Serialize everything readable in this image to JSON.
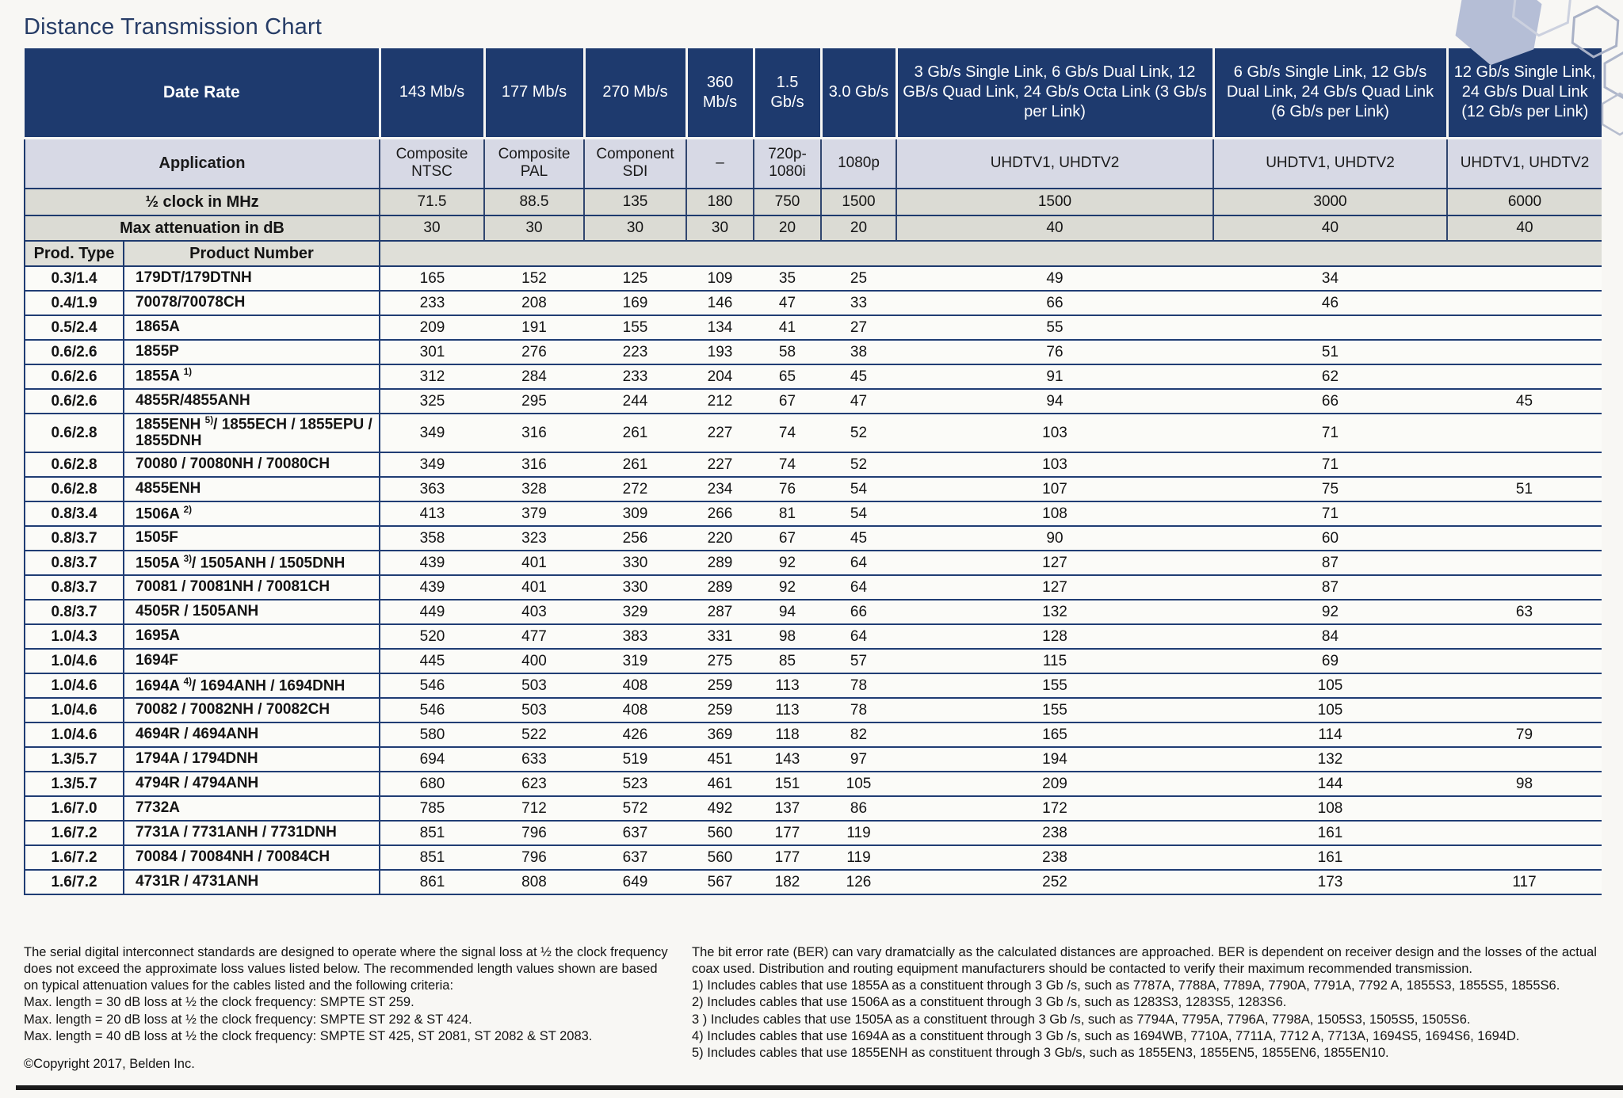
{
  "page": {
    "title": "Distance Transmission Chart"
  },
  "colors": {
    "header_navy": "#1e3a6e",
    "application_row": "#d7d9e5",
    "stat_row": "#dbdbd4",
    "row_line": "#203d74"
  },
  "table": {
    "corner_labels": {
      "data_rate": "Date Rate",
      "application": "Application",
      "half_clock": "½ clock in MHz",
      "max_attenuation": "Max attenuation in dB",
      "prod_type": "Prod. Type",
      "product_number": "Product Number"
    },
    "columns": [
      {
        "rate": "143 Mb/s",
        "application": "Composite NTSC",
        "half_clock": "71.5",
        "max_attenuation": "30"
      },
      {
        "rate": "177 Mb/s",
        "application": "Composite PAL",
        "half_clock": "88.5",
        "max_attenuation": "30"
      },
      {
        "rate": "270 Mb/s",
        "application": "Component SDI",
        "half_clock": "135",
        "max_attenuation": "30"
      },
      {
        "rate": "360 Mb/s",
        "application": "–",
        "half_clock": "180",
        "max_attenuation": "30"
      },
      {
        "rate": "1.5 Gb/s",
        "application": "720p- 1080i",
        "half_clock": "750",
        "max_attenuation": "20"
      },
      {
        "rate": "3.0 Gb/s",
        "application": "1080p",
        "half_clock": "1500",
        "max_attenuation": "20"
      },
      {
        "rate": "3 Gb/s Single Link, 6 Gb/s Dual Link, 12 GB/s Quad Link, 24 Gb/s Octa Link (3 Gb/s per Link)",
        "application": "UHDTV1, UHDTV2",
        "half_clock": "1500",
        "max_attenuation": "40"
      },
      {
        "rate": "6 Gb/s Single Link, 12 Gb/s Dual Link, 24 Gb/s Quad Link (6 Gb/s per Link)",
        "application": "UHDTV1, UHDTV2",
        "half_clock": "3000",
        "max_attenuation": "40"
      },
      {
        "rate": "12 Gb/s Single Link, 24 Gb/s Dual Link (12 Gb/s per Link)",
        "application": "UHDTV1, UHDTV2",
        "half_clock": "6000",
        "max_attenuation": "40"
      }
    ],
    "rows": [
      {
        "type": "0.3/1.4",
        "pn": "179DT/179DTNH",
        "sup": "",
        "pn_rest": "",
        "values": [
          "165",
          "152",
          "125",
          "109",
          "35",
          "25",
          "49",
          "34",
          ""
        ]
      },
      {
        "type": "0.4/1.9",
        "pn": "70078/70078CH",
        "sup": "",
        "pn_rest": "",
        "values": [
          "233",
          "208",
          "169",
          "146",
          "47",
          "33",
          "66",
          "46",
          ""
        ]
      },
      {
        "type": "0.5/2.4",
        "pn": "1865A",
        "sup": "",
        "pn_rest": "",
        "values": [
          "209",
          "191",
          "155",
          "134",
          "41",
          "27",
          "55",
          "",
          ""
        ]
      },
      {
        "type": "0.6/2.6",
        "pn": "1855P",
        "sup": "",
        "pn_rest": "",
        "values": [
          "301",
          "276",
          "223",
          "193",
          "58",
          "38",
          "76",
          "51",
          ""
        ]
      },
      {
        "type": "0.6/2.6",
        "pn": "1855A ",
        "sup": "1)",
        "pn_rest": "",
        "values": [
          "312",
          "284",
          "233",
          "204",
          "65",
          "45",
          "91",
          "62",
          ""
        ]
      },
      {
        "type": "0.6/2.6",
        "pn": "4855R/4855ANH",
        "sup": "",
        "pn_rest": "",
        "values": [
          "325",
          "295",
          "244",
          "212",
          "67",
          "47",
          "94",
          "66",
          "45"
        ]
      },
      {
        "type": "0.6/2.8",
        "pn": "1855ENH ",
        "sup": "5)",
        "pn_rest": "/ 1855ECH / 1855EPU / 1855DNH",
        "values": [
          "349",
          "316",
          "261",
          "227",
          "74",
          "52",
          "103",
          "71",
          ""
        ]
      },
      {
        "type": "0.6/2.8",
        "pn": "70080 / 70080NH / 70080CH",
        "sup": "",
        "pn_rest": "",
        "values": [
          "349",
          "316",
          "261",
          "227",
          "74",
          "52",
          "103",
          "71",
          ""
        ]
      },
      {
        "type": "0.6/2.8",
        "pn": "4855ENH",
        "sup": "",
        "pn_rest": "",
        "values": [
          "363",
          "328",
          "272",
          "234",
          "76",
          "54",
          "107",
          "75",
          "51"
        ]
      },
      {
        "type": "0.8/3.4",
        "pn": "1506A ",
        "sup": "2)",
        "pn_rest": "",
        "values": [
          "413",
          "379",
          "309",
          "266",
          "81",
          "54",
          "108",
          "71",
          ""
        ]
      },
      {
        "type": "0.8/3.7",
        "pn": "1505F",
        "sup": "",
        "pn_rest": "",
        "values": [
          "358",
          "323",
          "256",
          "220",
          "67",
          "45",
          "90",
          "60",
          ""
        ]
      },
      {
        "type": "0.8/3.7",
        "pn": "1505A ",
        "sup": "3)",
        "pn_rest": "/ 1505ANH / 1505DNH",
        "values": [
          "439",
          "401",
          "330",
          "289",
          "92",
          "64",
          "127",
          "87",
          ""
        ]
      },
      {
        "type": "0.8/3.7",
        "pn": "70081 / 70081NH / 70081CH",
        "sup": "",
        "pn_rest": "",
        "values": [
          "439",
          "401",
          "330",
          "289",
          "92",
          "64",
          "127",
          "87",
          ""
        ]
      },
      {
        "type": "0.8/3.7",
        "pn": "4505R / 1505ANH",
        "sup": "",
        "pn_rest": "",
        "values": [
          "449",
          "403",
          "329",
          "287",
          "94",
          "66",
          "132",
          "92",
          "63"
        ]
      },
      {
        "type": "1.0/4.3",
        "pn": "1695A",
        "sup": "",
        "pn_rest": "",
        "values": [
          "520",
          "477",
          "383",
          "331",
          "98",
          "64",
          "128",
          "84",
          ""
        ]
      },
      {
        "type": "1.0/4.6",
        "pn": "1694F",
        "sup": "",
        "pn_rest": "",
        "values": [
          "445",
          "400",
          "319",
          "275",
          "85",
          "57",
          "115",
          "69",
          ""
        ]
      },
      {
        "type": "1.0/4.6",
        "pn": "1694A ",
        "sup": "4)",
        "pn_rest": "/ 1694ANH / 1694DNH",
        "values": [
          "546",
          "503",
          "408",
          "259",
          "113",
          "78",
          "155",
          "105",
          ""
        ]
      },
      {
        "type": "1.0/4.6",
        "pn": "70082 / 70082NH / 70082CH",
        "sup": "",
        "pn_rest": "",
        "values": [
          "546",
          "503",
          "408",
          "259",
          "113",
          "78",
          "155",
          "105",
          ""
        ]
      },
      {
        "type": "1.0/4.6",
        "pn": "4694R / 4694ANH",
        "sup": "",
        "pn_rest": "",
        "values": [
          "580",
          "522",
          "426",
          "369",
          "118",
          "82",
          "165",
          "114",
          "79"
        ]
      },
      {
        "type": "1.3/5.7",
        "pn": "1794A / 1794DNH",
        "sup": "",
        "pn_rest": "",
        "values": [
          "694",
          "633",
          "519",
          "451",
          "143",
          "97",
          "194",
          "132",
          ""
        ]
      },
      {
        "type": "1.3/5.7",
        "pn": "4794R / 4794ANH",
        "sup": "",
        "pn_rest": "",
        "values": [
          "680",
          "623",
          "523",
          "461",
          "151",
          "105",
          "209",
          "144",
          "98"
        ]
      },
      {
        "type": "1.6/7.0",
        "pn": "7732A",
        "sup": "",
        "pn_rest": "",
        "values": [
          "785",
          "712",
          "572",
          "492",
          "137",
          "86",
          "172",
          "108",
          ""
        ]
      },
      {
        "type": "1.6/7.2",
        "pn": "7731A / 7731ANH / 7731DNH",
        "sup": "",
        "pn_rest": "",
        "values": [
          "851",
          "796",
          "637",
          "560",
          "177",
          "119",
          "238",
          "161",
          ""
        ]
      },
      {
        "type": "1.6/7.2",
        "pn": "70084 / 70084NH / 70084CH",
        "sup": "",
        "pn_rest": "",
        "values": [
          "851",
          "796",
          "637",
          "560",
          "177",
          "119",
          "238",
          "161",
          ""
        ]
      },
      {
        "type": "1.6/7.2",
        "pn": "4731R / 4731ANH",
        "sup": "",
        "pn_rest": "",
        "values": [
          "861",
          "808",
          "649",
          "567",
          "182",
          "126",
          "252",
          "173",
          "117"
        ]
      }
    ]
  },
  "footnotes": {
    "left": {
      "para": "The serial digital interconnect standards are designed to operate where the signal loss at ½ the clock frequency does not exceed the approximate loss values listed below. The recommended length values shown are based on typical attenuation values for the cables listed and the following criteria:",
      "lines": [
        "Max. length = 30 dB loss at ½ the clock frequency: SMPTE ST 259.",
        "Max. length = 20 dB loss at ½ the clock frequency: SMPTE ST 292 & ST 424.",
        "Max. length = 40 dB loss at ½ the clock frequency: SMPTE ST 425, ST 2081, ST 2082 & ST 2083."
      ],
      "copyright": "©Copyright 2017, Belden Inc."
    },
    "right": {
      "para": "The bit error rate (BER) can vary dramatcially as the calculated distances are approached. BER is dependent on receiver design and the losses of the actual coax used. Distribution and routing equipment manufacturers should be contacted to verify their maximum recommended transmission.",
      "items": [
        "1) Includes cables that use 1855A as a constituent through 3 Gb /s, such as 7787A, 7788A, 7789A, 7790A, 7791A, 7792 A, 1855S3, 1855S5, 1855S6.",
        "2) Includes cables that use 1506A as a constituent through 3 Gb /s, such as 1283S3, 1283S5, 1283S6.",
        "3 ) Includes cables that use 1505A as a constituent through 3 Gb /s, such as 7794A, 7795A, 7796A, 7798A, 1505S3, 1505S5, 1505S6.",
        "4) Includes cables that use 1694A as a constituent through 3 Gb /s, such as 1694WB, 7710A, 7711A, 7712 A, 7713A, 1694S5, 1694S6, 1694D.",
        "5) Includes cables that use 1855ENH as constituent through 3 Gb/s, such as 1855EN3, 1855EN5, 1855EN6, 1855EN10."
      ]
    }
  }
}
